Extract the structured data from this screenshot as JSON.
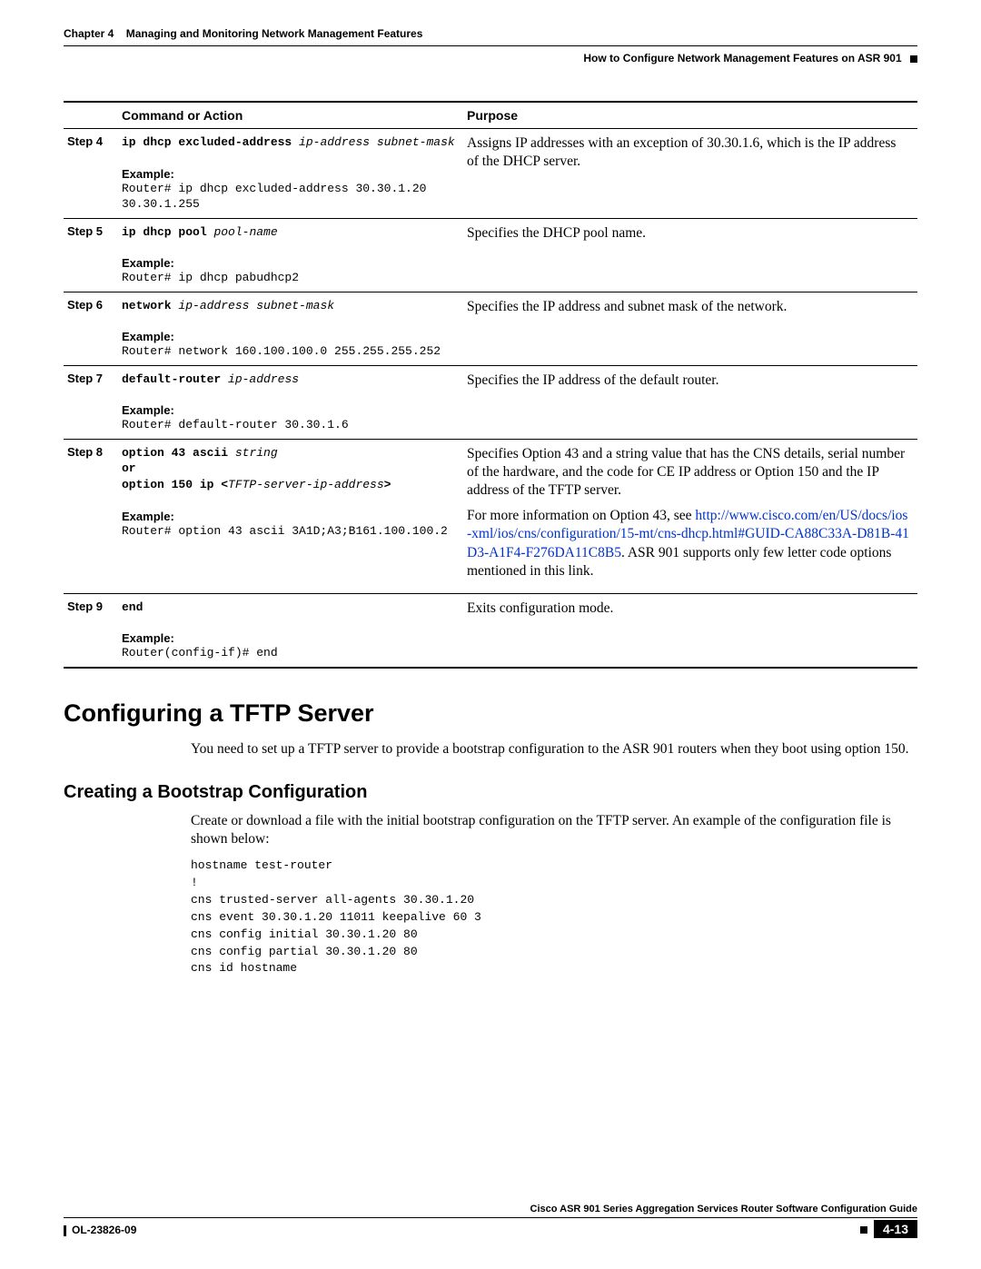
{
  "header": {
    "chapter_num": "Chapter 4",
    "chapter_title": "Managing and Monitoring Network Management Features",
    "section_right": "How to Configure Network Management Features on ASR 901"
  },
  "table": {
    "col_command": "Command or Action",
    "col_purpose": "Purpose",
    "example_label": "Example:",
    "steps": [
      {
        "step": "Step 4",
        "cmd_kw": "ip dhcp excluded-address",
        "cmd_arg": "ip-address subnet-mask",
        "example": "Router# ip dhcp excluded-address 30.30.1.20 30.30.1.255",
        "purpose": "Assigns IP addresses with an exception of 30.30.1.6, which is the IP address of the DHCP server."
      },
      {
        "step": "Step 5",
        "cmd_kw": "ip dhcp pool",
        "cmd_arg": "pool-name",
        "example": "Router# ip dhcp pabudhcp2",
        "purpose": "Specifies the DHCP pool name."
      },
      {
        "step": "Step 6",
        "cmd_kw": "network",
        "cmd_arg": "ip-address subnet-mask",
        "example": "Router# network 160.100.100.0 255.255.255.252",
        "purpose": "Specifies the IP address and subnet mask of the network."
      },
      {
        "step": "Step 7",
        "cmd_kw": "default-router",
        "cmd_arg": "ip-address",
        "example": "Router# default-router 30.30.1.6",
        "purpose": "Specifies the IP address of the default router."
      },
      {
        "step": "Step 8",
        "cmd_line1_kw": "option 43 ascii",
        "cmd_line1_arg": "string",
        "cmd_or": "or",
        "cmd_line2_kw": "option 150 ip <",
        "cmd_line2_arg": "TFTP-server-ip-address",
        "cmd_line2_close": ">",
        "example": "Router# option 43 ascii 3A1D;A3;B161.100.100.2",
        "purpose1": "Specifies Option 43 and a string value that has the CNS details, serial number of the hardware, and the code for CE IP address or Option 150 and the IP address of the TFTP server.",
        "purpose2_pre": "For more information on Option 43, see ",
        "purpose2_link": "http://www.cisco.com/en/US/docs/ios-xml/ios/cns/configuration/15-mt/cns-dhcp.html#GUID-CA88C33A-D81B-41D3-A1F4-F276DA11C8B5",
        "purpose2_post": ". ASR 901 supports only few letter code options mentioned in this link."
      },
      {
        "step": "Step 9",
        "cmd_kw": "end",
        "cmd_arg": "",
        "example": "Router(config-if)# end",
        "purpose": "Exits configuration mode."
      }
    ]
  },
  "section1": {
    "title": "Configuring a TFTP Server",
    "para": "You need to set up a TFTP server to provide a bootstrap configuration to the ASR 901 routers when they boot using option 150."
  },
  "section2": {
    "title": "Creating a Bootstrap Configuration",
    "para": "Create or download a file with the initial bootstrap configuration on the TFTP server. An example of the configuration file is shown below:",
    "config": "hostname test-router\n!\ncns trusted-server all-agents 30.30.1.20\ncns event 30.30.1.20 11011 keepalive 60 3\ncns config initial 30.30.1.20 80\ncns config partial 30.30.1.20 80\ncns id hostname"
  },
  "footer": {
    "book": "Cisco ASR 901 Series Aggregation Services Router Software Configuration Guide",
    "doc_id": "OL-23826-09",
    "page": "4-13"
  }
}
